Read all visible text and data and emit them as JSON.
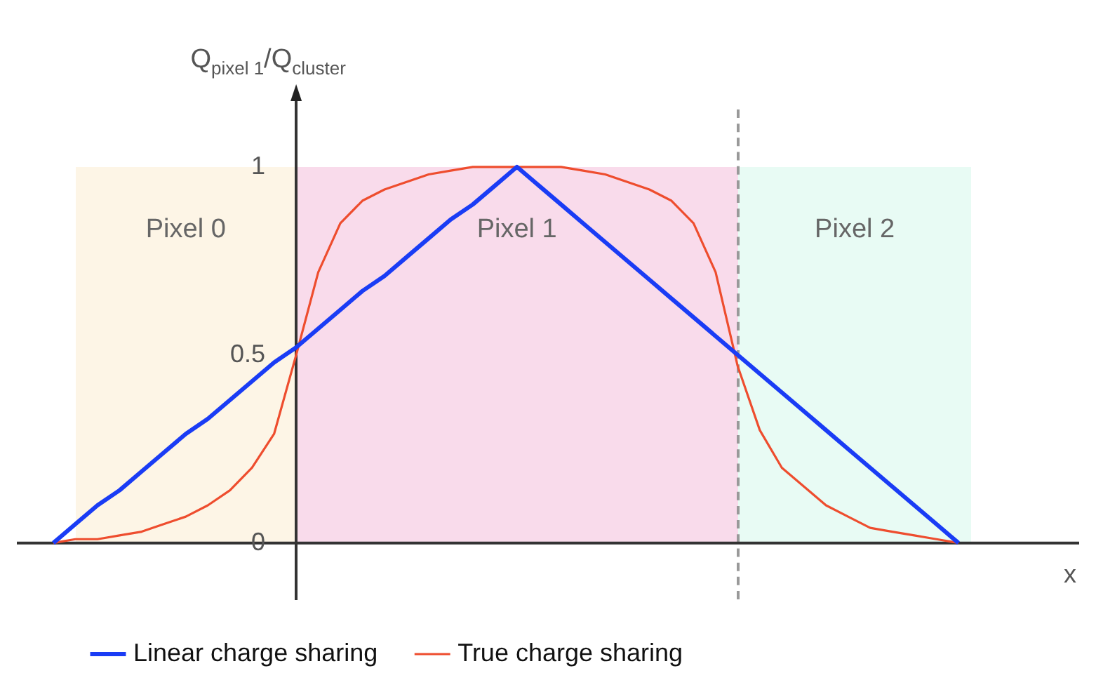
{
  "chart_data": {
    "type": "line",
    "xlabel": "x",
    "ylabel": "Q$_{pixel 1}$/Q$_{cluster}$",
    "categories": [
      null,
      null,
      null,
      null,
      null,
      null,
      null,
      null,
      null,
      null,
      null,
      null,
      null,
      null,
      null,
      null,
      null,
      null,
      null,
      null,
      null,
      null,
      null,
      null,
      null,
      null,
      null,
      null,
      null,
      null,
      null,
      null,
      null,
      null,
      null,
      null,
      null,
      null,
      null,
      null,
      null,
      null
    ],
    "ylim": [
      -0.15,
      1.19
    ],
    "yticks": [
      0,
      0.5,
      1
    ],
    "tick_labels": "y",
    "grid": false,
    "legend": "bottom",
    "marker": "none",
    "line_style": "solid",
    "series": [
      {
        "name": "Linear charge sharing",
        "color": "#1a3cf5",
        "values": [
          0,
          0.05,
          0.1,
          0.14,
          0.19,
          0.24,
          0.29,
          0.33,
          0.38,
          0.43,
          0.48,
          0.52,
          0.57,
          0.62,
          0.67,
          0.71,
          0.76,
          0.81,
          0.86,
          0.9,
          0.95,
          1,
          0.95,
          0.9,
          0.85,
          0.8,
          0.75,
          0.7,
          0.65,
          0.6,
          0.55,
          0.5,
          0.45,
          0.4,
          0.35,
          0.3,
          0.25,
          0.2,
          0.15,
          0.1,
          0.05,
          0
        ]
      },
      {
        "name": "True charge sharing",
        "color": "#ee4d2e",
        "values": [
          0,
          0.01,
          0.01,
          0.02,
          0.03,
          0.05,
          0.07,
          0.1,
          0.14,
          0.2,
          0.29,
          0.5,
          0.72,
          0.85,
          0.91,
          0.94,
          0.96,
          0.98,
          0.99,
          1,
          1,
          1,
          1,
          1,
          0.99,
          0.98,
          0.96,
          0.94,
          0.91,
          0.85,
          0.72,
          0.47,
          0.3,
          0.2,
          0.15,
          0.1,
          0.07,
          0.04,
          0.03,
          0.02,
          0.01,
          0
        ]
      }
    ],
    "annotations": [
      "Pixel 0",
      "Pixel 1",
      "Pixel 2"
    ]
  }
}
